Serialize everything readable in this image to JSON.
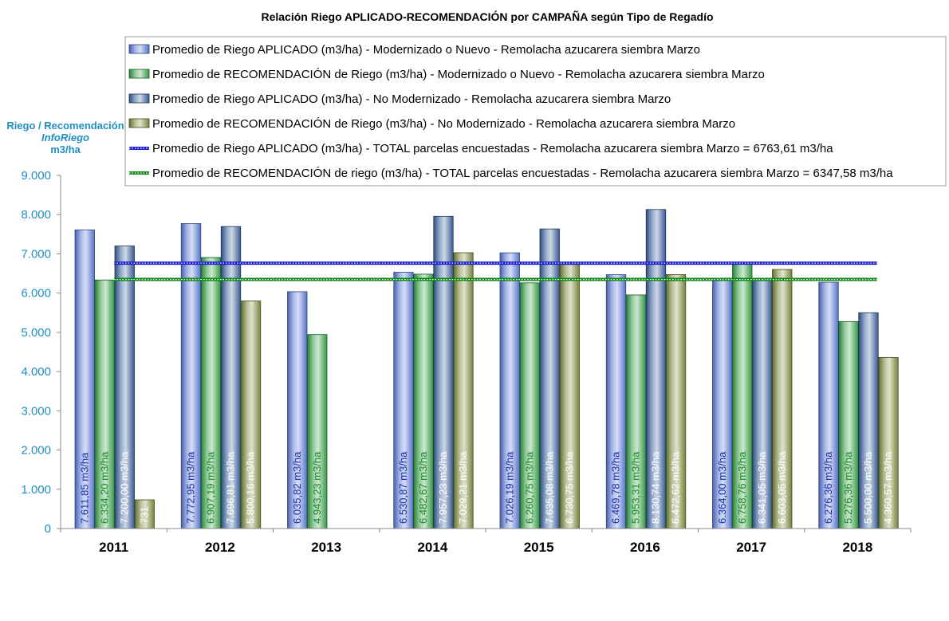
{
  "chart_data": {
    "type": "bar",
    "title": "Relación Riego APLICADO-RECOMENDACIÓN por CAMPAÑA  según Tipo de Regadío",
    "ylabel_lines": [
      "Riego / Recomendación",
      "InfoRiego",
      "m3/ha"
    ],
    "ylim": [
      0,
      9000
    ],
    "yticks": [
      "0",
      "1.000",
      "2.000",
      "3.000",
      "4.000",
      "5.000",
      "6.000",
      "7.000",
      "8.000",
      "9.000"
    ],
    "categories": [
      "2011",
      "2012",
      "2013",
      "2014",
      "2015",
      "2016",
      "2017",
      "2018"
    ],
    "legend_position": "top-right",
    "series": [
      {
        "name": "Promedio de Riego APLICADO (m3/ha) - Modernizado o Nuevo - Remolacha azucarera siembra Marzo",
        "color": "#5b79d6",
        "label_color": "#1e2fa8",
        "values": [
          7611.85,
          7772.95,
          6035.82,
          6530.87,
          7026.19,
          6469.78,
          6364.0,
          6276.36
        ],
        "labels": [
          "7.611,85  m3/ha",
          "7.772,95  m3/ha",
          "6.035,82  m3/ha",
          "6.530,87  m3/ha",
          "7.026,19  m3/ha",
          "6.469,78  m3/ha",
          "6.364,00  m3/ha",
          "6.276,36  m3/ha"
        ]
      },
      {
        "name": "Promedio de RECOMENDACIÓN de Riego (m3/ha) - Modernizado o Nuevo - Remolacha azucarera siembra Marzo",
        "color": "#35a045",
        "label_color": "#1d8a2c",
        "values": [
          6334.2,
          6907.19,
          4943.23,
          6482.67,
          6260.75,
          5953.31,
          6758.76,
          5276.36
        ],
        "labels": [
          "6.334,20  m3/ha",
          "6.907,19  m3/ha",
          "4.943,23  m3/ha",
          "6.482,67  m3/ha",
          "6.260,75  m3/ha",
          "5.953,31  m3/ha",
          "6.758,76  m3/ha",
          "5.276,36  m3/ha"
        ]
      },
      {
        "name": "Promedio de Riego APLICADO (m3/ha) - No Modernizado - Remolacha azucarera siembra Marzo",
        "color": "#39619c",
        "label_color": "#ffffff",
        "values": [
          7200.0,
          7696.81,
          null,
          7957.23,
          7635.08,
          8130.74,
          6341.05,
          5500.0
        ],
        "labels": [
          "7.200,00  m3/ha",
          "7.696,81  m3/ha",
          "",
          "7.957,23  m3/ha",
          "7.635,08  m3/ha",
          "8.130,74  m3/ha",
          "6.341,05  m3/ha",
          "5.500,00  m3/ha"
        ]
      },
      {
        "name": "Promedio de RECOMENDACIÓN de Riego (m3/ha) - No Modernizado - Remolacha azucarera siembra Marzo",
        "color": "#7c8a3c",
        "label_color": "#ffffff",
        "values": [
          731,
          5800.16,
          null,
          7029.21,
          6730.75,
          6472.62,
          6603.05,
          4360.57
        ],
        "labels": [
          "731",
          "5.800,16  m3/ha",
          "",
          "7.029,21  m3/ha",
          "6.730,75  m3/ha",
          "6.472,62  m3/ha",
          "6.603,05  m3/ha",
          "4.360,57  m3/ha"
        ]
      }
    ],
    "reference_lines": [
      {
        "name": "Promedio de Riego APLICADO (m3/ha) - TOTAL parcelas encuestadas - Remolacha azucarera siembra Marzo = 6763,61 m3/ha",
        "value": 6763.61,
        "color": "#1c1cd0"
      },
      {
        "name": "Promedio de RECOMENDACIÓN de riego (m3/ha) - TOTAL parcelas encuestadas - Remolacha azucarera siembra Marzo = 6347,58 m3/ha",
        "value": 6347.58,
        "color": "#138a1c"
      }
    ]
  }
}
